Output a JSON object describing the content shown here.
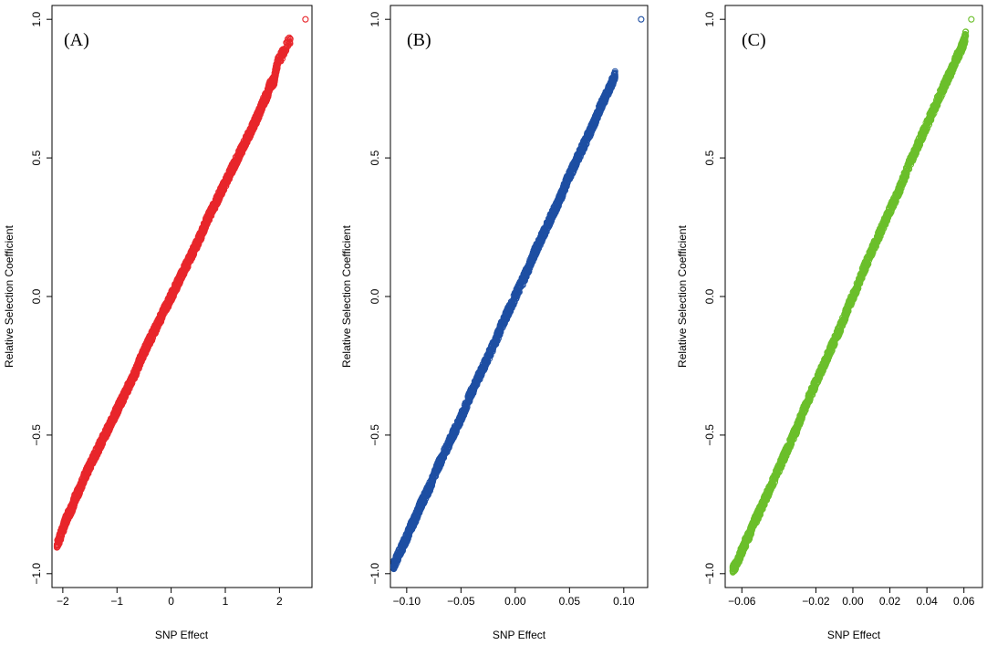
{
  "chart_data": [
    {
      "type": "scatter",
      "panel_label": "(A)",
      "xlabel": "SNP Effect",
      "ylabel": "Relative Selection Coefficient",
      "xlim": [
        -2.2,
        2.6
      ],
      "ylim": [
        -1.05,
        1.05
      ],
      "xticks": [
        -2,
        -1,
        0,
        1,
        2
      ],
      "xtick_labels": [
        "−2",
        "−1",
        "0",
        "1",
        "2"
      ],
      "yticks": [
        -1.0,
        -0.5,
        0.0,
        0.5,
        1.0
      ],
      "ytick_labels": [
        "−1.0",
        "−0.5",
        "0.0",
        "0.5",
        "1.0"
      ],
      "marker": "open-circle",
      "color": "#e8262b",
      "series": [
        {
          "x": [
            -2.11,
            -2.0,
            -1.95,
            -1.88,
            -1.82,
            -1.78,
            -1.7,
            -1.62,
            -1.55,
            -1.45,
            -1.35,
            -1.25,
            -1.15,
            -1.05,
            -0.95,
            -0.85,
            -0.75,
            -0.65,
            -0.55,
            -0.45,
            -0.35,
            -0.25,
            -0.15,
            -0.05,
            0.05,
            0.15,
            0.25,
            0.35,
            0.45,
            0.55,
            0.65,
            0.75,
            0.85,
            0.95,
            1.05,
            1.15,
            1.25,
            1.35,
            1.45,
            1.55,
            1.62,
            1.7,
            1.78,
            1.82,
            1.9,
            1.96,
            2.2,
            2.48
          ],
          "y": [
            -0.9,
            -0.84,
            -0.81,
            -0.78,
            -0.76,
            -0.73,
            -0.7,
            -0.66,
            -0.63,
            -0.59,
            -0.55,
            -0.51,
            -0.47,
            -0.43,
            -0.39,
            -0.35,
            -0.31,
            -0.27,
            -0.22,
            -0.18,
            -0.14,
            -0.1,
            -0.06,
            -0.02,
            0.02,
            0.06,
            0.1,
            0.14,
            0.18,
            0.22,
            0.27,
            0.31,
            0.35,
            0.39,
            0.43,
            0.47,
            0.51,
            0.55,
            0.59,
            0.63,
            0.66,
            0.7,
            0.73,
            0.76,
            0.78,
            0.84,
            0.93,
            1.0
          ]
        }
      ]
    },
    {
      "type": "scatter",
      "panel_label": "(B)",
      "xlabel": "SNP Effect",
      "ylabel": "Relative Selection Coefficient",
      "xlim": [
        -0.115,
        0.122
      ],
      "ylim": [
        -1.05,
        1.05
      ],
      "xticks": [
        -0.1,
        -0.05,
        0.0,
        0.05,
        0.1
      ],
      "xtick_labels": [
        "−0.10",
        "−0.05",
        "0.00",
        "0.05",
        "0.10"
      ],
      "yticks": [
        -1.0,
        -0.5,
        0.0,
        0.5,
        1.0
      ],
      "ytick_labels": [
        "−1.0",
        "−0.5",
        "0.0",
        "0.5",
        "1.0"
      ],
      "marker": "open-circle",
      "color": "#1e4fa3",
      "series": [
        {
          "x": [
            -0.112,
            -0.106,
            -0.1,
            -0.096,
            -0.092,
            -0.088,
            -0.083,
            -0.078,
            -0.072,
            -0.066,
            -0.06,
            -0.054,
            -0.048,
            -0.042,
            -0.036,
            -0.03,
            -0.024,
            -0.018,
            -0.012,
            -0.006,
            0.0,
            0.006,
            0.012,
            0.018,
            0.024,
            0.03,
            0.036,
            0.042,
            0.048,
            0.054,
            0.06,
            0.066,
            0.072,
            0.078,
            0.083,
            0.088,
            0.092,
            0.116
          ],
          "y": [
            -0.97,
            -0.92,
            -0.87,
            -0.83,
            -0.8,
            -0.76,
            -0.72,
            -0.68,
            -0.62,
            -0.57,
            -0.52,
            -0.47,
            -0.42,
            -0.36,
            -0.31,
            -0.26,
            -0.21,
            -0.16,
            -0.1,
            -0.05,
            0.0,
            0.05,
            0.1,
            0.16,
            0.21,
            0.26,
            0.31,
            0.36,
            0.42,
            0.47,
            0.52,
            0.57,
            0.62,
            0.68,
            0.72,
            0.76,
            0.8,
            1.0
          ]
        }
      ]
    },
    {
      "type": "scatter",
      "panel_label": "(C)",
      "xlabel": "SNP Effect",
      "ylabel": "Relative Selection Coefficient",
      "xlim": [
        -0.069,
        0.07
      ],
      "ylim": [
        -1.05,
        1.05
      ],
      "xticks": [
        -0.06,
        -0.02,
        0.0,
        0.02,
        0.04,
        0.06
      ],
      "xtick_labels": [
        "−0.06",
        "−0.02",
        "0.00",
        "0.02",
        "0.04",
        "0.06"
      ],
      "yticks": [
        -1.0,
        -0.5,
        0.0,
        0.5,
        1.0
      ],
      "ytick_labels": [
        "−1.0",
        "−0.5",
        "0.0",
        "0.5",
        "1.0"
      ],
      "marker": "open-circle",
      "color": "#6bbf2b",
      "series": [
        {
          "x": [
            -0.065,
            -0.062,
            -0.059,
            -0.056,
            -0.053,
            -0.05,
            -0.046,
            -0.042,
            -0.038,
            -0.034,
            -0.03,
            -0.026,
            -0.022,
            -0.018,
            -0.014,
            -0.01,
            -0.006,
            -0.002,
            0.002,
            0.006,
            0.01,
            0.014,
            0.018,
            0.022,
            0.026,
            0.03,
            0.034,
            0.038,
            0.042,
            0.046,
            0.05,
            0.053,
            0.056,
            0.059,
            0.061,
            0.064
          ],
          "y": [
            -0.99,
            -0.95,
            -0.9,
            -0.86,
            -0.81,
            -0.77,
            -0.71,
            -0.65,
            -0.59,
            -0.53,
            -0.47,
            -0.4,
            -0.34,
            -0.28,
            -0.22,
            -0.16,
            -0.1,
            -0.03,
            0.03,
            0.1,
            0.16,
            0.22,
            0.28,
            0.34,
            0.4,
            0.47,
            0.53,
            0.59,
            0.65,
            0.71,
            0.77,
            0.81,
            0.86,
            0.9,
            0.94,
            1.0
          ]
        }
      ]
    }
  ]
}
